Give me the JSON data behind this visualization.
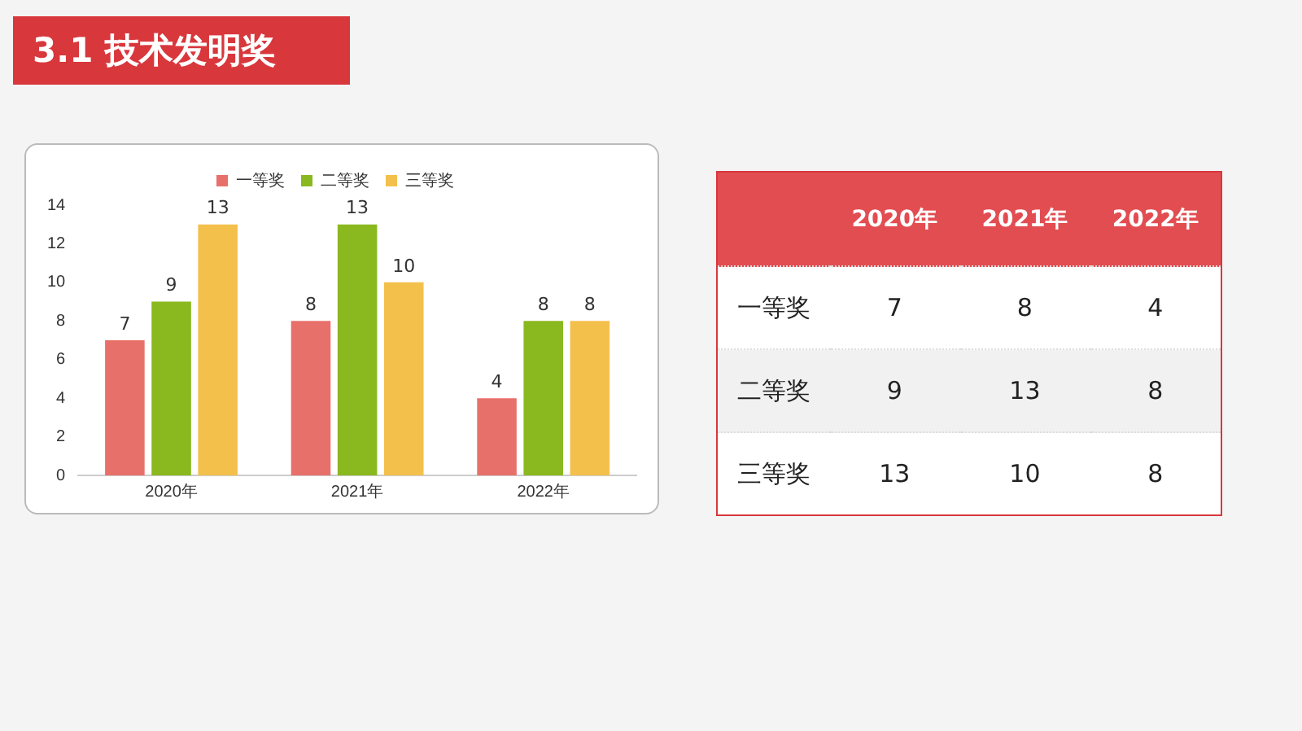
{
  "chart_data": [
    {
      "type": "bar",
      "title": "3.1 技术发明奖",
      "categories": [
        "2020年",
        "2021年",
        "2022年"
      ],
      "series": [
        {
          "name": "一等奖",
          "color": "#e8706a",
          "values": [
            7,
            8,
            4
          ]
        },
        {
          "name": "二等奖",
          "color": "#8ab81f",
          "values": [
            9,
            13,
            8
          ]
        },
        {
          "name": "三等奖",
          "color": "#f4c04c",
          "values": [
            13,
            10,
            8
          ]
        }
      ],
      "ylim": [
        0,
        14
      ],
      "yticks": [
        0,
        2,
        4,
        6,
        8,
        10,
        12,
        14
      ],
      "grid": false,
      "legend": "top",
      "data_labels": true
    },
    {
      "type": "heatmap",
      "categories": [
        "2020年",
        "2021年",
        "2022年"
      ],
      "y_categories": [
        "一等奖",
        "二等奖",
        "三等奖"
      ],
      "cells": [
        [
          7,
          8,
          4
        ],
        [
          9,
          13,
          8
        ],
        [
          13,
          10,
          8
        ]
      ],
      "data_labels": true
    }
  ]
}
